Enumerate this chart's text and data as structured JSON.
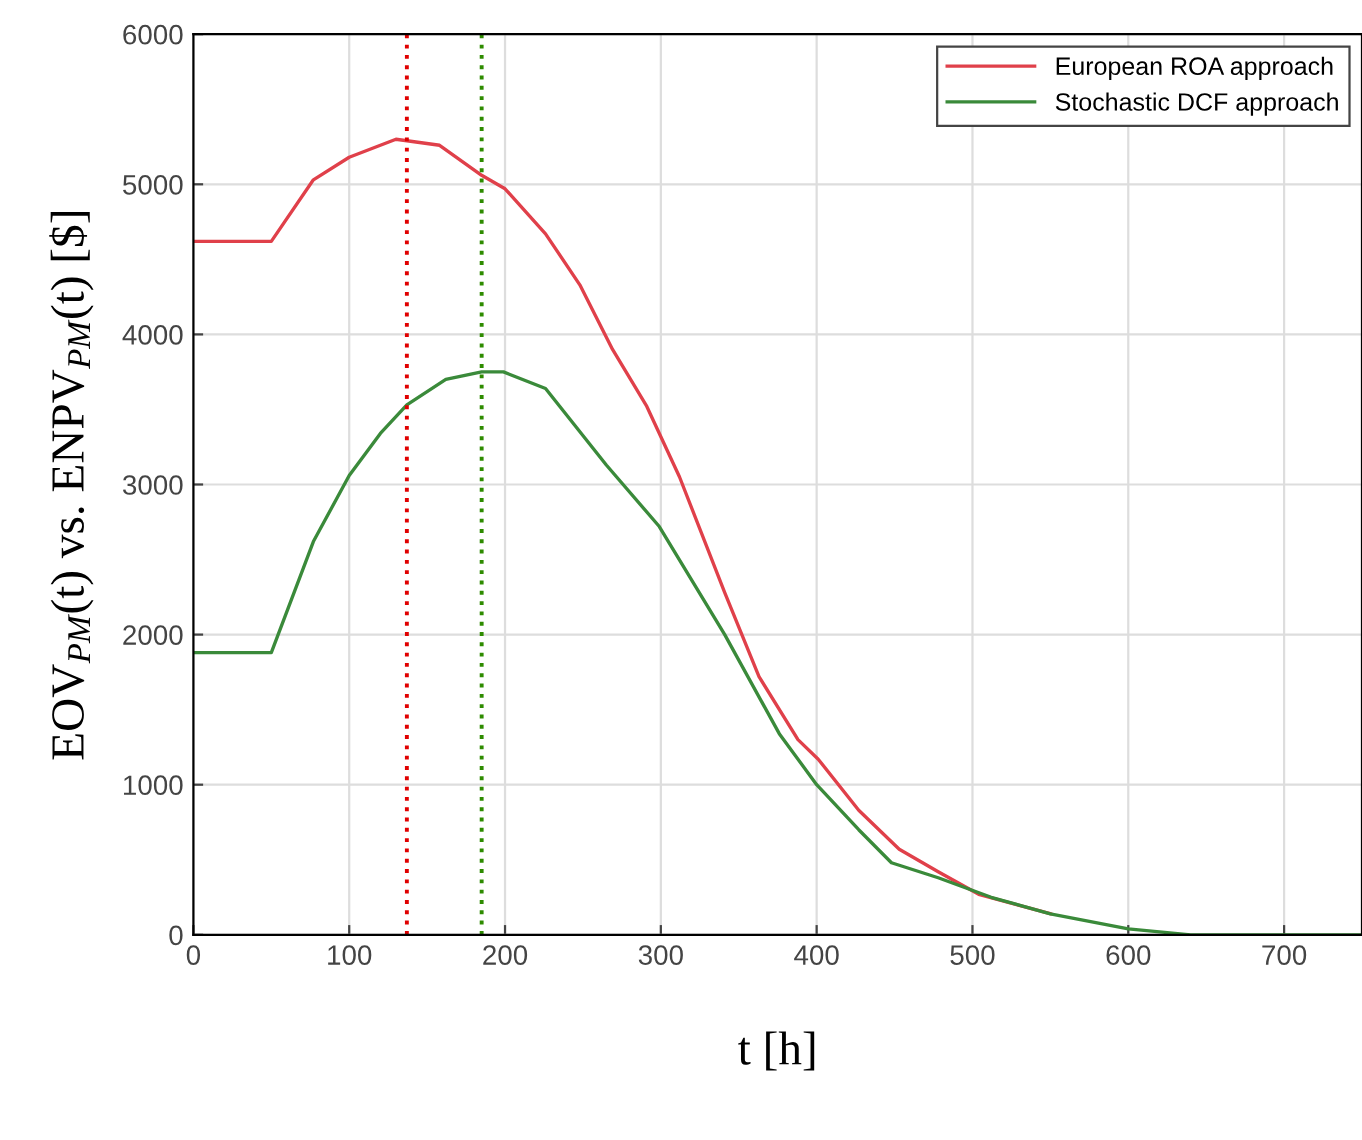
{
  "chart_data": {
    "type": "line",
    "xlabel": "t [h]",
    "ylabel": "EOV$_{PM}$(t) vs. ENPV$_{PM}$(t) [$]",
    "xlim": [
      0,
      750
    ],
    "ylim": [
      0,
      6000
    ],
    "xticks": [
      0,
      100,
      200,
      300,
      400,
      500,
      600,
      700
    ],
    "yticks": [
      0,
      1000,
      2000,
      3000,
      4000,
      5000,
      6000
    ],
    "grid": true,
    "legend": "top right",
    "line_style": "solid",
    "series": [
      {
        "name": "European ROA approach",
        "color": "#e0404a",
        "x": [
          0,
          50,
          77,
          100,
          130,
          158,
          185,
          200,
          226,
          248,
          269,
          291,
          312,
          341,
          363,
          388,
          401,
          427,
          453,
          478,
          504,
          550
        ],
        "values": [
          4620,
          4620,
          5030,
          5180,
          5300,
          5260,
          5060,
          4970,
          4670,
          4330,
          3900,
          3520,
          3050,
          2280,
          1720,
          1300,
          1170,
          830,
          570,
          420,
          270,
          140
        ]
      },
      {
        "name": "Stochastic DCF approach",
        "color": "#3a8a3a",
        "x": [
          0,
          50,
          77,
          100,
          120,
          137,
          162,
          185,
          199,
          226,
          265,
          299,
          341,
          376,
          400,
          427,
          448,
          478,
          512,
          550,
          600,
          640,
          700,
          750
        ],
        "values": [
          1880,
          1880,
          2620,
          3060,
          3340,
          3530,
          3700,
          3750,
          3750,
          3640,
          3130,
          2720,
          2000,
          1340,
          1000,
          700,
          480,
          380,
          250,
          140,
          40,
          0,
          0,
          0
        ]
      }
    ],
    "ref_lines": [
      {
        "axis": "x",
        "value": 137,
        "color": "#e00000",
        "line_style": "dotted"
      },
      {
        "axis": "x",
        "value": 185,
        "color": "#2e8b00",
        "line_style": "dotted"
      }
    ]
  }
}
